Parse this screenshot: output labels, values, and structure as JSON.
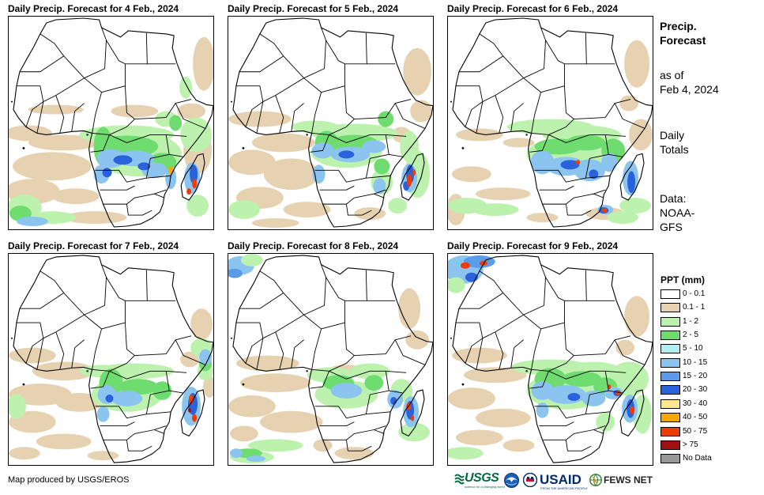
{
  "panels": [
    {
      "title": "Daily Precip. Forecast for 4 Feb., 2024"
    },
    {
      "title": "Daily Precip. Forecast for 5 Feb., 2024"
    },
    {
      "title": "Daily Precip. Forecast for 6 Feb., 2024"
    },
    {
      "title": "Daily Precip. Forecast for 7 Feb., 2024"
    },
    {
      "title": "Daily Precip. Forecast for 8 Feb., 2024"
    },
    {
      "title": "Daily Precip. Forecast for 9 Feb., 2024"
    }
  ],
  "sidebar": {
    "heading": [
      "Precip.",
      "Forecast"
    ],
    "as_of": [
      "as of",
      "Feb 4, 2024"
    ],
    "totals": [
      "Daily",
      "Totals"
    ],
    "source": [
      "Data:",
      "NOAA-",
      "GFS"
    ]
  },
  "legend": {
    "title": "PPT (mm)",
    "items": [
      {
        "label": "0 - 0.1",
        "color": "#ffffff"
      },
      {
        "label": "0.1 - 1",
        "color": "#e6d2b0"
      },
      {
        "label": "1 - 2",
        "color": "#bdf2ae"
      },
      {
        "label": "2 - 5",
        "color": "#6fdc6f"
      },
      {
        "label": "5 - 10",
        "color": "#b2eef2"
      },
      {
        "label": "10 - 15",
        "color": "#8cc4f0"
      },
      {
        "label": "15 - 20",
        "color": "#5b9cea"
      },
      {
        "label": "20 - 30",
        "color": "#2a62dc"
      },
      {
        "label": "30 - 40",
        "color": "#ffe88a"
      },
      {
        "label": "40 - 50",
        "color": "#f5a800"
      },
      {
        "label": "50 - 75",
        "color": "#f03c00"
      },
      {
        "label": "> 75",
        "color": "#a01010"
      },
      {
        "label": "No Data",
        "color": "#999999"
      }
    ]
  },
  "footer": {
    "credit": "Map produced by USGS/EROS"
  },
  "logos": {
    "usgs": {
      "name": "USGS",
      "tagline": "science for a changing world"
    },
    "usaid": {
      "name": "USAID",
      "tagline": "FROM THE AMERICAN PEOPLE"
    },
    "fewsnet": {
      "name": "FEWS NET"
    }
  }
}
